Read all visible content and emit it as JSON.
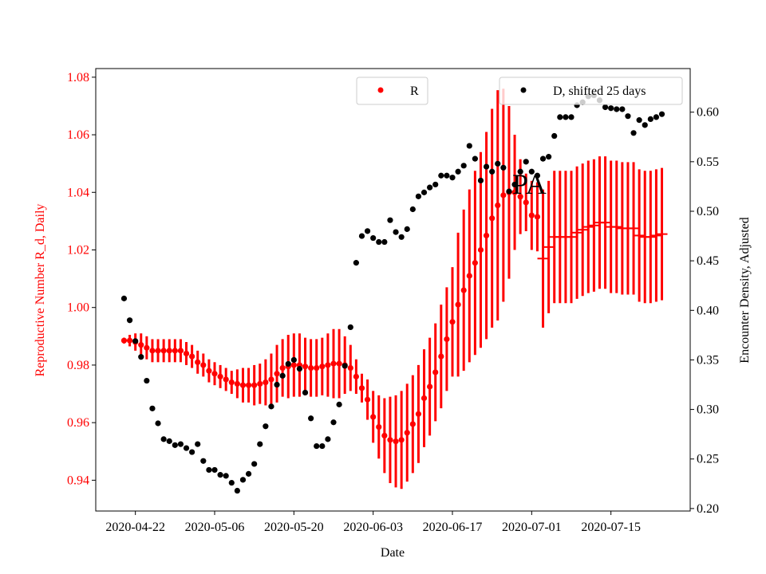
{
  "chart_data": {
    "type": "scatter",
    "xlabel": "Date",
    "ylabel_left": "Reproductive Number R_d, Daily",
    "ylabel_right": "Encounter Density, Adjusted",
    "annotation": "PA",
    "x_ticks": [
      "2020-04-22",
      "2020-05-06",
      "2020-05-20",
      "2020-06-03",
      "2020-06-17",
      "2020-07-01",
      "2020-07-15"
    ],
    "y_left_ticks": [
      "0.94",
      "0.96",
      "0.98",
      "1.00",
      "1.02",
      "1.04",
      "1.06",
      "1.08"
    ],
    "y_right_ticks": [
      "0.20",
      "0.25",
      "0.30",
      "0.35",
      "0.40",
      "0.45",
      "0.50",
      "0.55",
      "0.60"
    ],
    "xlim": [
      "2020-04-15",
      "2020-07-29"
    ],
    "ylim_left": [
      0.9293,
      1.083
    ],
    "ylim_right": [
      0.1975,
      0.644
    ],
    "grid": false,
    "colors": {
      "R": "#ff0000",
      "D": "#000000",
      "left_axis": "#ff0000",
      "right_axis": "#000000"
    },
    "legends": [
      {
        "label": "R",
        "placement": "top-center"
      },
      {
        "label": "D, shifted 25 days",
        "placement": "top-right"
      }
    ],
    "dates": [
      "2020-04-20",
      "2020-04-21",
      "2020-04-22",
      "2020-04-23",
      "2020-04-24",
      "2020-04-25",
      "2020-04-26",
      "2020-04-27",
      "2020-04-28",
      "2020-04-29",
      "2020-04-30",
      "2020-05-01",
      "2020-05-02",
      "2020-05-03",
      "2020-05-04",
      "2020-05-05",
      "2020-05-06",
      "2020-05-07",
      "2020-05-08",
      "2020-05-09",
      "2020-05-10",
      "2020-05-11",
      "2020-05-12",
      "2020-05-13",
      "2020-05-14",
      "2020-05-15",
      "2020-05-16",
      "2020-05-17",
      "2020-05-18",
      "2020-05-19",
      "2020-05-20",
      "2020-05-21",
      "2020-05-22",
      "2020-05-23",
      "2020-05-24",
      "2020-05-25",
      "2020-05-26",
      "2020-05-27",
      "2020-05-28",
      "2020-05-29",
      "2020-05-30",
      "2020-05-31",
      "2020-06-01",
      "2020-06-02",
      "2020-06-03",
      "2020-06-04",
      "2020-06-05",
      "2020-06-06",
      "2020-06-07",
      "2020-06-08",
      "2020-06-09",
      "2020-06-10",
      "2020-06-11",
      "2020-06-12",
      "2020-06-13",
      "2020-06-14",
      "2020-06-15",
      "2020-06-16",
      "2020-06-17",
      "2020-06-18",
      "2020-06-19",
      "2020-06-20",
      "2020-06-21",
      "2020-06-22",
      "2020-06-23",
      "2020-06-24",
      "2020-06-25",
      "2020-06-26",
      "2020-06-27",
      "2020-06-28",
      "2020-06-29",
      "2020-06-30",
      "2020-07-01",
      "2020-07-02",
      "2020-07-03",
      "2020-07-04",
      "2020-07-05",
      "2020-07-06",
      "2020-07-07",
      "2020-07-08",
      "2020-07-09",
      "2020-07-10",
      "2020-07-11",
      "2020-07-12",
      "2020-07-13",
      "2020-07-14",
      "2020-07-15",
      "2020-07-16",
      "2020-07-17",
      "2020-07-18",
      "2020-07-19",
      "2020-07-20",
      "2020-07-21",
      "2020-07-22",
      "2020-07-23",
      "2020-07-24"
    ],
    "series": [
      {
        "name": "R",
        "axis": "left",
        "values": [
          0.9885,
          0.9885,
          0.988,
          0.987,
          0.986,
          0.985,
          0.985,
          0.985,
          0.985,
          0.985,
          0.985,
          0.984,
          0.983,
          0.981,
          0.98,
          0.978,
          0.977,
          0.976,
          0.975,
          0.974,
          0.9735,
          0.973,
          0.973,
          0.973,
          0.9735,
          0.974,
          0.975,
          0.977,
          0.979,
          0.9795,
          0.98,
          0.98,
          0.9795,
          0.979,
          0.979,
          0.9795,
          0.98,
          0.9805,
          0.9805,
          0.98,
          0.979,
          0.976,
          0.972,
          0.968,
          0.962,
          0.9585,
          0.9555,
          0.954,
          0.9535,
          0.954,
          0.9565,
          0.9595,
          0.963,
          0.9685,
          0.9725,
          0.9775,
          0.983,
          0.989,
          0.995,
          1.001,
          1.006,
          1.011,
          1.0155,
          1.02,
          1.025,
          1.031,
          1.0355,
          1.039,
          1.04,
          1.04,
          1.0385,
          1.0365,
          1.032,
          1.0315,
          1.017,
          1.021,
          1.0245,
          1.0245,
          1.0245,
          1.0245,
          1.026,
          1.027,
          1.028,
          1.0285,
          1.0295,
          1.0295,
          1.028,
          1.028,
          1.0275,
          1.0275,
          1.0275,
          1.025,
          1.0245,
          1.0245,
          1.025,
          1.0255
        ],
        "error": [
          0.001,
          0.002,
          0.003,
          0.004,
          0.004,
          0.004,
          0.004,
          0.004,
          0.004,
          0.004,
          0.004,
          0.004,
          0.004,
          0.004,
          0.004,
          0.004,
          0.004,
          0.004,
          0.004,
          0.004,
          0.005,
          0.006,
          0.006,
          0.007,
          0.007,
          0.008,
          0.009,
          0.01,
          0.01,
          0.011,
          0.011,
          0.011,
          0.01,
          0.01,
          0.01,
          0.01,
          0.011,
          0.012,
          0.012,
          0.01,
          0.008,
          0.006,
          0.005,
          0.007,
          0.009,
          0.011,
          0.013,
          0.015,
          0.016,
          0.017,
          0.017,
          0.017,
          0.017,
          0.017,
          0.017,
          0.017,
          0.018,
          0.018,
          0.019,
          0.025,
          0.028,
          0.03,
          0.032,
          0.034,
          0.036,
          0.038,
          0.04,
          0.037,
          0.03,
          0.02,
          0.013,
          0.01,
          0.012,
          0.012,
          0.024,
          0.023,
          0.023,
          0.023,
          0.023,
          0.023,
          0.023,
          0.023,
          0.023,
          0.023,
          0.023,
          0.023,
          0.023,
          0.023,
          0.023,
          0.023,
          0.023,
          0.023,
          0.023,
          0.023,
          0.023,
          0.023
        ],
        "marker_from": "2020-07-03"
      },
      {
        "name": "D, shifted 25 days",
        "axis": "right",
        "values": [
          0.412,
          0.39,
          0.369,
          0.353,
          0.329,
          0.301,
          0.286,
          0.27,
          0.268,
          0.264,
          0.265,
          0.261,
          0.257,
          0.265,
          0.248,
          0.239,
          0.239,
          0.234,
          0.233,
          0.226,
          0.218,
          0.229,
          0.235,
          0.245,
          0.265,
          0.283,
          0.303,
          0.325,
          0.334,
          0.346,
          0.35,
          0.341,
          0.317,
          0.291,
          0.263,
          0.263,
          0.27,
          0.287,
          0.305,
          0.344,
          0.383,
          0.448,
          0.475,
          0.48,
          0.473,
          0.469,
          0.469,
          0.491,
          0.479,
          0.474,
          0.482,
          0.502,
          0.515,
          0.519,
          0.524,
          0.527,
          0.536,
          0.536,
          0.534,
          0.54,
          0.546,
          0.566,
          0.553,
          0.531,
          0.545,
          0.54,
          0.548,
          0.544,
          0.52,
          0.527,
          0.54,
          0.55,
          0.54,
          0.536,
          0.553,
          0.555,
          0.576,
          0.595,
          0.595,
          0.595,
          0.607,
          0.61,
          0.616,
          0.617,
          0.612,
          0.605,
          0.604,
          0.603,
          0.603,
          0.596,
          0.579,
          0.592,
          0.587,
          0.593,
          0.595,
          0.598
        ]
      }
    ]
  }
}
